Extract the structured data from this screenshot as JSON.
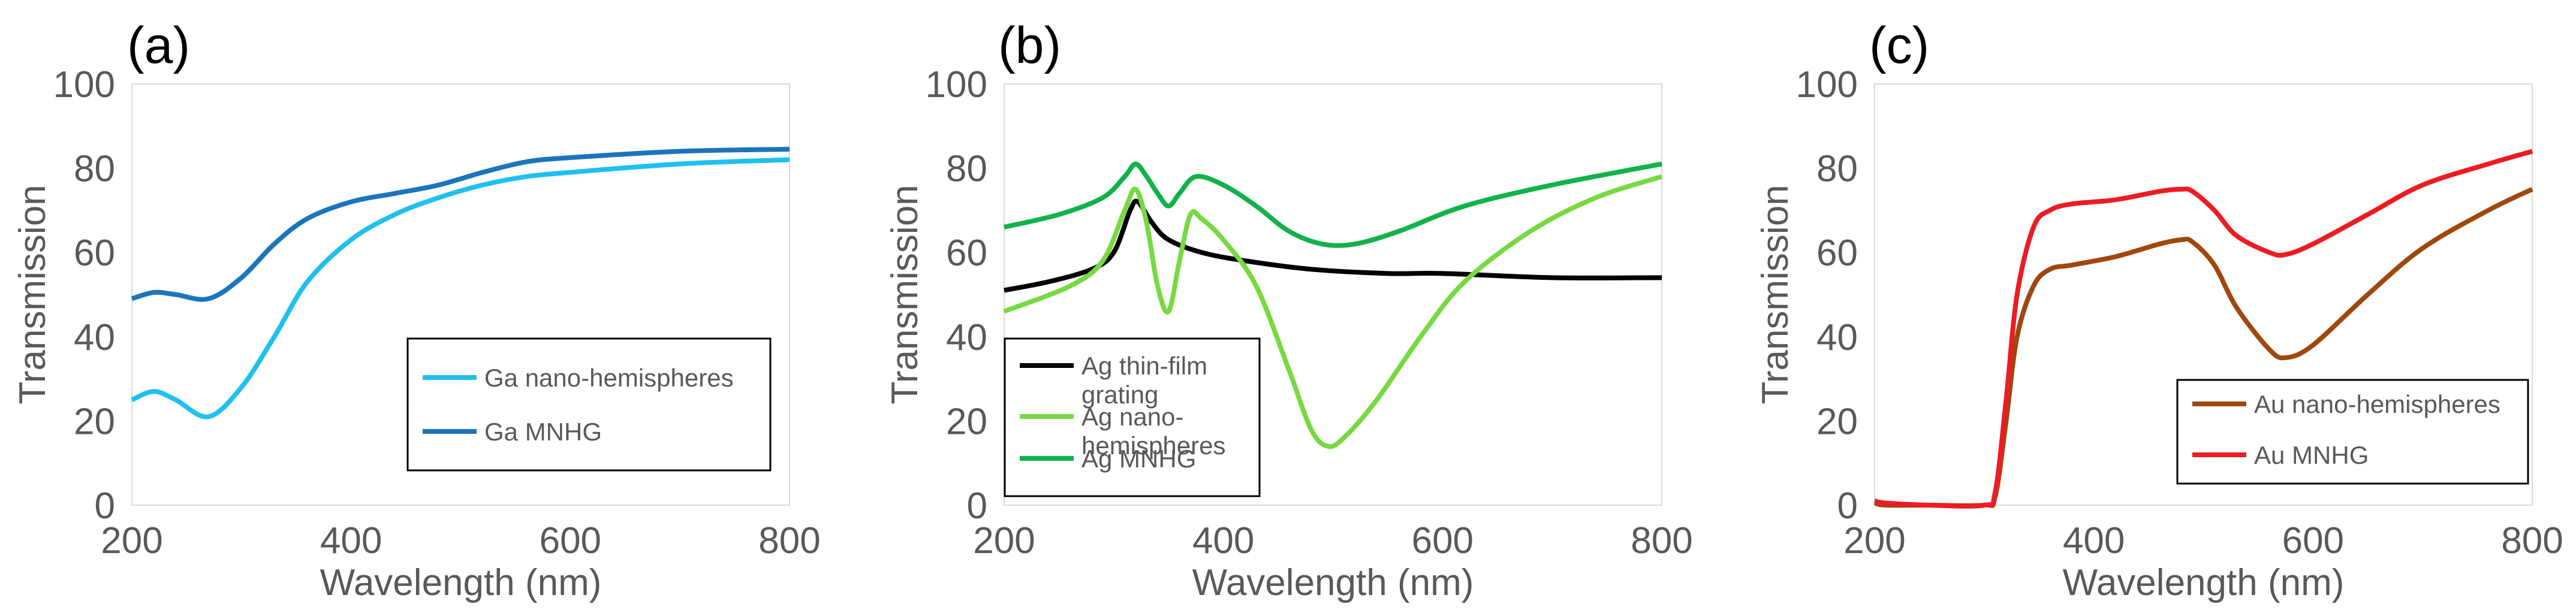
{
  "chart_data": [
    {
      "panel": "(a)",
      "type": "line",
      "xlabel": "Wavelength (nm)",
      "ylabel": "Transmission",
      "xlim": [
        200,
        800
      ],
      "ylim": [
        0,
        100
      ],
      "xticks": [
        "200",
        "400",
        "600",
        "800"
      ],
      "yticks": [
        "0",
        "20",
        "40",
        "60",
        "80",
        "100"
      ],
      "series": [
        {
          "name": "Ga nano-hemispheres",
          "color": "#20c0ee",
          "x": [
            200,
            220,
            240,
            270,
            300,
            330,
            360,
            400,
            440,
            480,
            520,
            560,
            600,
            700,
            800
          ],
          "y": [
            25,
            27,
            25,
            21,
            28,
            40,
            53,
            63,
            69,
            73,
            76,
            78,
            79,
            81,
            82
          ]
        },
        {
          "name": "Ga MNHG",
          "color": "#1b75bb",
          "x": [
            200,
            220,
            240,
            270,
            300,
            330,
            360,
            400,
            440,
            480,
            520,
            560,
            600,
            700,
            800
          ],
          "y": [
            49,
            50.5,
            50,
            49,
            54,
            62,
            68,
            72,
            74,
            76,
            79,
            81.5,
            82.5,
            84,
            84.5
          ]
        }
      ]
    },
    {
      "panel": "(b)",
      "type": "line",
      "xlabel": "Wavelength (nm)",
      "ylabel": "Transmission",
      "xlim": [
        200,
        800
      ],
      "ylim": [
        0,
        100
      ],
      "xticks": [
        "200",
        "400",
        "600",
        "800"
      ],
      "yticks": [
        "0",
        "20",
        "40",
        "60",
        "80",
        "100"
      ],
      "series": [
        {
          "name": "Ag thin-film grating",
          "color": "#000000",
          "x": [
            200,
            240,
            280,
            300,
            315,
            322,
            335,
            350,
            380,
            420,
            480,
            550,
            600,
            700,
            800
          ],
          "y": [
            51,
            53,
            56,
            60,
            70,
            72,
            67,
            63,
            60,
            58,
            56,
            55,
            55,
            54,
            54
          ]
        },
        {
          "name": "Ag nano-hemispheres",
          "color": "#77d941",
          "x": [
            200,
            260,
            290,
            310,
            320,
            330,
            340,
            350,
            360,
            370,
            380,
            400,
            430,
            460,
            480,
            495,
            510,
            540,
            580,
            620,
            680,
            740,
            800
          ],
          "y": [
            46,
            52,
            58,
            70,
            75,
            67,
            52,
            46,
            58,
            69,
            68,
            63,
            52,
            32,
            18,
            14,
            16,
            25,
            40,
            53,
            65,
            73,
            78
          ]
        },
        {
          "name": "Ag MNHG",
          "color": "#11b24a",
          "x": [
            200,
            250,
            290,
            310,
            320,
            330,
            340,
            350,
            360,
            375,
            400,
            430,
            460,
            490,
            520,
            560,
            620,
            700,
            800
          ],
          "y": [
            66,
            69,
            73,
            78,
            81,
            78,
            74,
            71,
            74,
            78,
            76,
            71,
            65,
            62,
            62,
            65,
            71,
            76,
            81
          ]
        }
      ]
    },
    {
      "panel": "(c)",
      "type": "line",
      "xlabel": "Wavelength (nm)",
      "ylabel": "Transmission",
      "xlim": [
        200,
        800
      ],
      "ylim": [
        0,
        100
      ],
      "xticks": [
        "200",
        "400",
        "600",
        "800"
      ],
      "yticks": [
        "0",
        "20",
        "40",
        "60",
        "80",
        "100"
      ],
      "series": [
        {
          "name": "Au nano-hemispheres",
          "color": "#9e480e",
          "x": [
            200,
            210,
            250,
            300,
            310,
            320,
            330,
            345,
            360,
            380,
            420,
            460,
            480,
            490,
            510,
            530,
            560,
            575,
            600,
            650,
            700,
            760,
            800
          ],
          "y": [
            0.5,
            0,
            0,
            0,
            2,
            20,
            40,
            52,
            56,
            57,
            59,
            62,
            63,
            62.5,
            57,
            47,
            37,
            35,
            38,
            50,
            61,
            70,
            75
          ]
        },
        {
          "name": "Au MNHG",
          "color": "#ec1c24",
          "x": [
            200,
            210,
            250,
            300,
            310,
            320,
            330,
            345,
            360,
            380,
            420,
            460,
            480,
            490,
            510,
            530,
            560,
            575,
            600,
            650,
            700,
            760,
            800
          ],
          "y": [
            1,
            0.5,
            0,
            0,
            3,
            25,
            50,
            66,
            70,
            71.5,
            72.5,
            74.5,
            75,
            74.5,
            70,
            64,
            60,
            59.5,
            62,
            69,
            76,
            81,
            84
          ]
        }
      ]
    }
  ]
}
